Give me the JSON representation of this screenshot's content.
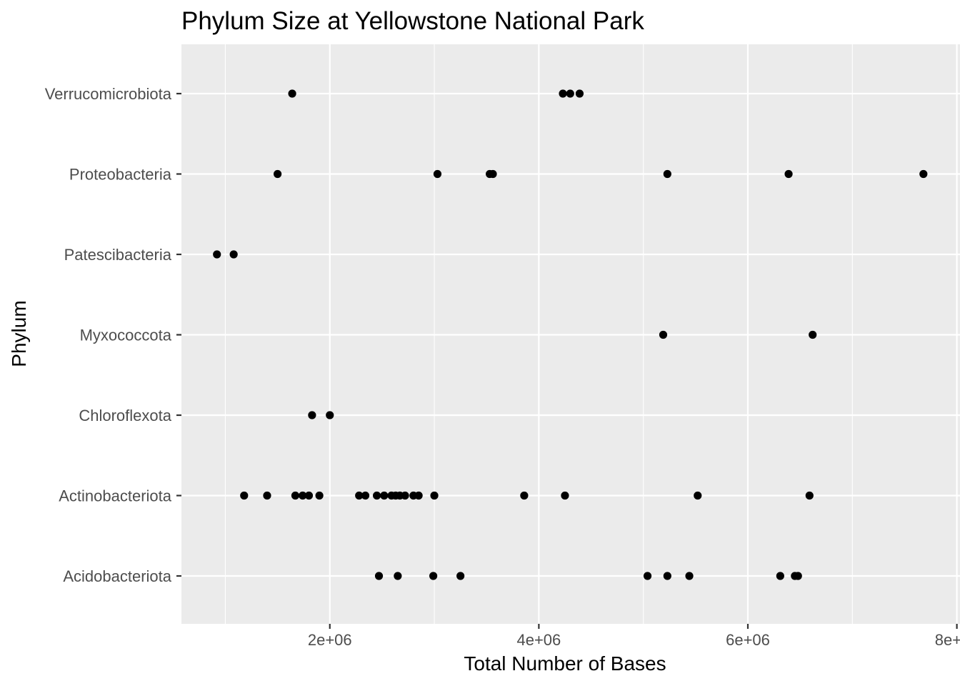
{
  "chart_data": {
    "type": "scatter",
    "title": "Phylum Size at Yellowstone National Park",
    "xlabel": "Total Number of Bases",
    "ylabel": "Phylum",
    "xlim": [
      580000,
      8030000
    ],
    "x_ticks": [
      2000000,
      4000000,
      6000000,
      8000000
    ],
    "x_tick_labels": [
      "2e+06",
      "4e+06",
      "6e+06",
      "8e+06"
    ],
    "x_minor_ticks": [
      1000000,
      3000000,
      5000000,
      7000000
    ],
    "categories": [
      "Acidobacteriota",
      "Actinobacteriota",
      "Chloroflexota",
      "Myxococcota",
      "Patescibacteria",
      "Proteobacteria",
      "Verrucomicrobiota"
    ],
    "grid": true,
    "series": [
      {
        "name": "Acidobacteriota",
        "x": [
          2470000,
          2650000,
          2990000,
          3250000,
          5040000,
          5230000,
          5440000,
          6310000,
          6450000,
          6480000
        ]
      },
      {
        "name": "Actinobacteriota",
        "x": [
          1180000,
          1400000,
          1670000,
          1740000,
          1800000,
          1900000,
          2280000,
          2340000,
          2450000,
          2520000,
          2590000,
          2630000,
          2670000,
          2720000,
          2800000,
          2850000,
          3000000,
          3860000,
          4250000,
          5520000,
          6590000
        ]
      },
      {
        "name": "Chloroflexota",
        "x": [
          1830000,
          2000000
        ]
      },
      {
        "name": "Myxococcota",
        "x": [
          5190000,
          6620000
        ]
      },
      {
        "name": "Patescibacteria",
        "x": [
          920000,
          1080000
        ]
      },
      {
        "name": "Proteobacteria",
        "x": [
          1500000,
          3030000,
          3530000,
          3560000,
          5230000,
          6390000,
          7680000
        ]
      },
      {
        "name": "Verrucomicrobiota",
        "x": [
          1640000,
          4230000,
          4300000,
          4390000
        ]
      }
    ]
  }
}
